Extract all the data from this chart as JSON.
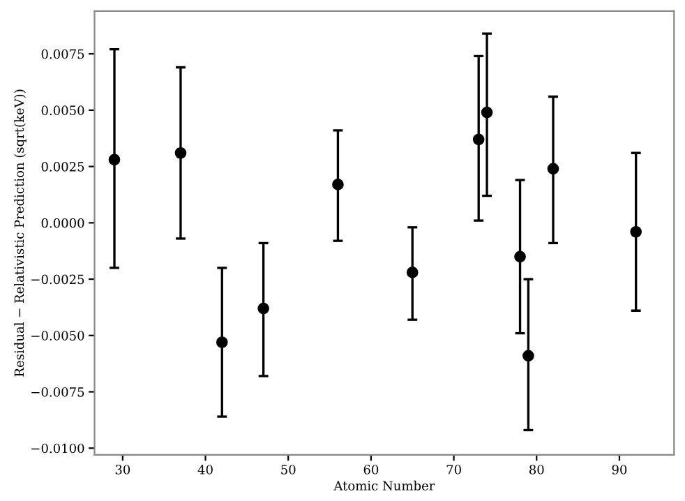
{
  "chart_data": {
    "type": "scatter",
    "xlabel": "Atomic Number",
    "ylabel": "Residual − Relativistic Prediction (sqrt(keV))",
    "x": [
      29,
      37,
      42,
      47,
      56,
      65,
      73,
      74,
      78,
      79,
      82,
      92
    ],
    "values": [
      0.0028,
      0.0031,
      -0.0053,
      -0.0038,
      0.0017,
      -0.0022,
      0.0037,
      0.0049,
      -0.0015,
      -0.0059,
      0.0024,
      -0.0004
    ],
    "errors": [
      [
        -0.002,
        0.0077
      ],
      [
        -0.0007,
        0.0069
      ],
      [
        -0.0086,
        -0.002
      ],
      [
        -0.0068,
        -0.0009
      ],
      [
        -0.0008,
        0.0041
      ],
      [
        -0.0043,
        -0.0002
      ],
      [
        0.0001,
        0.0074
      ],
      [
        0.0012,
        0.0084
      ],
      [
        -0.0049,
        0.0019
      ],
      [
        -0.0092,
        -0.0025
      ],
      [
        -0.0009,
        0.0056
      ],
      [
        -0.0039,
        0.0031
      ]
    ],
    "color": "#000000",
    "marker": "circle",
    "xlim": [
      26.6,
      96.6
    ],
    "xticks": [
      30,
      40,
      50,
      60,
      70,
      80,
      90
    ],
    "ylim": [
      -0.0103,
      0.0094
    ],
    "yticks": [
      {
        "value": -0.01,
        "label": "−0.0100"
      },
      {
        "value": -0.0075,
        "label": "−0.0075"
      },
      {
        "value": -0.005,
        "label": "−0.0050"
      },
      {
        "value": -0.0025,
        "label": "−0.0025"
      },
      {
        "value": 0,
        "label": "0.0000"
      },
      {
        "value": 0.0025,
        "label": "0.0025"
      },
      {
        "value": 0.005,
        "label": "0.0050"
      },
      {
        "value": 0.0075,
        "label": "0.0075"
      }
    ],
    "grid": false
  }
}
